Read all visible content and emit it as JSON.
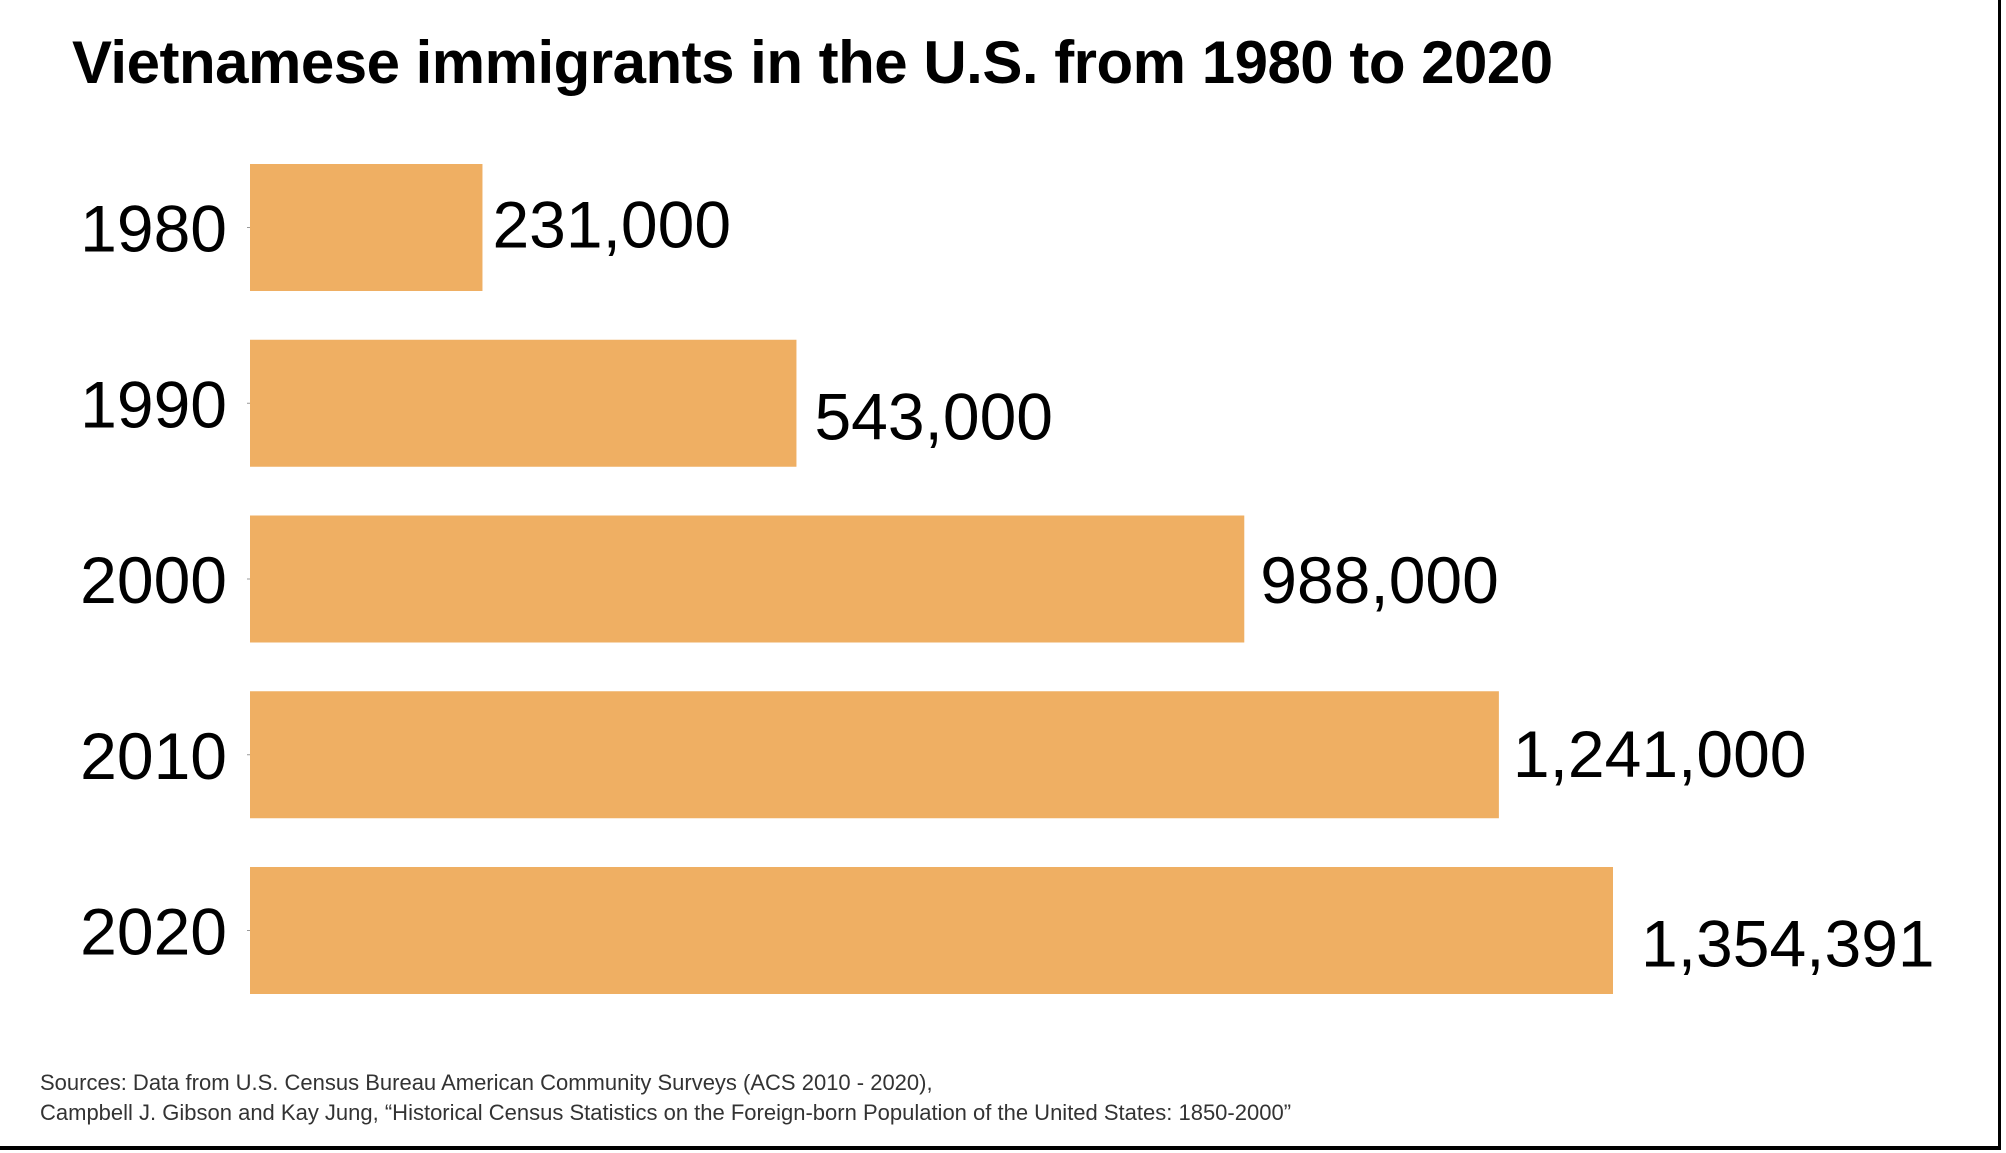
{
  "chart_data": {
    "type": "bar",
    "orientation": "horizontal",
    "title": "Vietnamese immigrants in the U.S. from 1980 to 2020",
    "categories": [
      "1980",
      "1990",
      "2000",
      "2010",
      "2020"
    ],
    "values": [
      231000,
      543000,
      988000,
      1241000,
      1354391
    ],
    "data_labels": [
      "231,000",
      "543,000",
      "988,000",
      "1,241,000",
      "1,354,391"
    ],
    "xlabel": "",
    "ylabel": "",
    "xlim": [
      0,
      1354391
    ],
    "grid": false,
    "legend": "none",
    "bar_color": "#EFAF63"
  },
  "sources": {
    "line1": "Sources: Data from U.S. Census Bureau American Community Surveys (ACS 2010 - 2020),",
    "line2": "Campbell J. Gibson and Kay Jung, “Historical Census Statistics on the Foreign-born Population of the United States: 1850-2000”"
  }
}
